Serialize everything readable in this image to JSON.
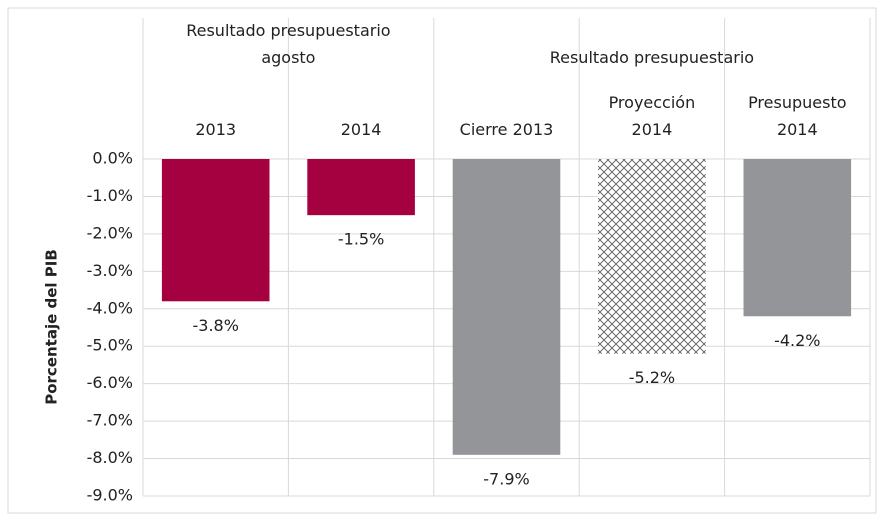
{
  "chart_data": {
    "type": "bar",
    "y_label": "Porcentaje del PIB",
    "groups": [
      {
        "label": "Resultado presupuestario\nagosto",
        "span": 2
      },
      {
        "label": "Resultado presupuestario",
        "span": 3
      }
    ],
    "categories": [
      "2013",
      "2014",
      "Cierre 2013",
      "Proyección\n2014",
      "Presupuesto\n2014"
    ],
    "values": [
      -3.8,
      -1.5,
      -7.9,
      -5.2,
      -4.2
    ],
    "value_labels": [
      "-3.8%",
      "-1.5%",
      "-7.9%",
      "-5.2%",
      "-4.2%"
    ],
    "colors": [
      "#a50040",
      "#a50040",
      "#939598",
      "#555555",
      "#939598"
    ],
    "patterns": [
      null,
      null,
      null,
      "crosshatch",
      null
    ],
    "ylim": [
      -9,
      0
    ],
    "yticks": [
      {
        "value": 0,
        "label": "0.0%"
      },
      {
        "value": -1,
        "label": "-1.0%"
      },
      {
        "value": -2,
        "label": "-2.0%"
      },
      {
        "value": -3,
        "label": "-3.0%"
      },
      {
        "value": -4,
        "label": "-4.0%"
      },
      {
        "value": -5,
        "label": "-5.0%"
      },
      {
        "value": -6,
        "label": "-6.0%"
      },
      {
        "value": -7,
        "label": "-7.0%"
      },
      {
        "value": -8,
        "label": "-8.0%"
      },
      {
        "value": -9,
        "label": "-9.0%"
      }
    ],
    "grid": true
  }
}
